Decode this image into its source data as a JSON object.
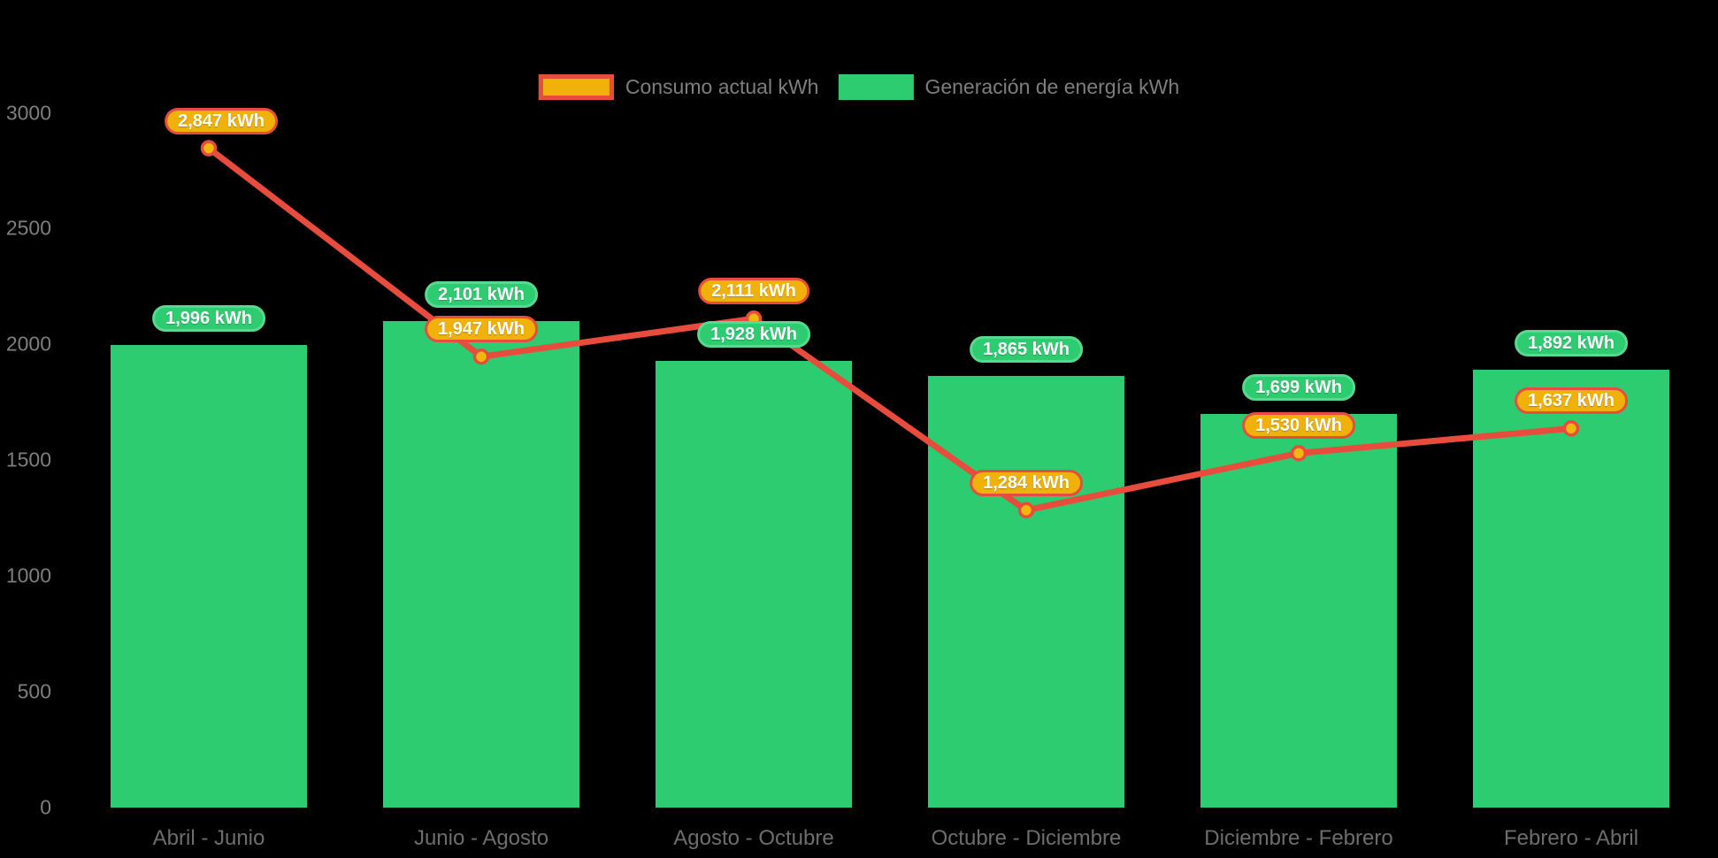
{
  "colors": {
    "background": "#000000",
    "bar_green": "#2ecc71",
    "green_badge_border": "#57d98f",
    "line_red": "#e74c3c",
    "badge_orange": "#f0b10b",
    "marker_orange": "#f2b70d",
    "badge_text": "#ffffff",
    "axis_text": "#7e7e7e",
    "xaxis_text": "#6d6d6d",
    "legend_text": "#7e7e7e"
  },
  "chart_data": {
    "type": "bar",
    "subtype": "bar-with-line-overlay",
    "title": "",
    "xlabel": "",
    "ylabel": "",
    "categories": [
      "Abril - Junio",
      "Junio - Agosto",
      "Agosto - Octubre",
      "Octubre - Diciembre",
      "Diciembre - Febrero",
      "Febrero - Abril"
    ],
    "series": [
      {
        "name": "Consumo actual kWh",
        "type": "line",
        "values": [
          2847,
          1947,
          2111,
          1284,
          1530,
          1637
        ],
        "labels": [
          "2,847 kWh",
          "1,947 kWh",
          "2,111 kWh",
          "1,284 kWh",
          "1,530 kWh",
          "1,637 kWh"
        ]
      },
      {
        "name": "Generación de energía kWh",
        "type": "bar",
        "values": [
          1996,
          2101,
          1928,
          1865,
          1699,
          1892
        ],
        "labels": [
          "1,996 kWh",
          "2,101 kWh",
          "1,928 kWh",
          "1,865 kWh",
          "1,699 kWh",
          "1,892 kWh"
        ]
      }
    ],
    "yticks": [
      0,
      500,
      1000,
      1500,
      2000,
      2500,
      3000
    ],
    "ylim": [
      0,
      3000
    ],
    "grid": false,
    "legend_position": "top-center",
    "unit": "kWh"
  }
}
